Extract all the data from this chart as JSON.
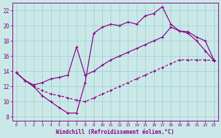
{
  "xlabel": "Windchill (Refroidissement éolien,°C)",
  "bg_color": "#cbe8e8",
  "line_color": "#880088",
  "grid_color": "#99cccc",
  "xlim": [
    -0.5,
    23.5
  ],
  "ylim": [
    7.5,
    23.0
  ],
  "xticks": [
    0,
    1,
    2,
    3,
    4,
    5,
    6,
    7,
    8,
    9,
    10,
    11,
    12,
    13,
    14,
    15,
    16,
    17,
    18,
    19,
    20,
    21,
    22,
    23
  ],
  "yticks": [
    8,
    10,
    12,
    14,
    16,
    18,
    20,
    22
  ],
  "line1_x": [
    0,
    1,
    2,
    3,
    4,
    5,
    6,
    7,
    8,
    9,
    10,
    11,
    12,
    13,
    14,
    15,
    16,
    17,
    18,
    19,
    20,
    21,
    22,
    23
  ],
  "line1_y": [
    13.8,
    12.8,
    12.0,
    10.8,
    10.0,
    9.2,
    8.5,
    8.5,
    12.5,
    19.0,
    19.8,
    20.2,
    20.0,
    20.5,
    20.2,
    21.3,
    21.6,
    22.5,
    20.2,
    19.3,
    19.0,
    18.0,
    16.7,
    15.4
  ],
  "line2_x": [
    0,
    1,
    2,
    3,
    4,
    5,
    6,
    7,
    8,
    9,
    10,
    11,
    12,
    13,
    14,
    15,
    16,
    17,
    18,
    19,
    20,
    21,
    22,
    23
  ],
  "line2_y": [
    13.8,
    12.8,
    12.2,
    12.5,
    13.0,
    13.2,
    13.5,
    17.2,
    13.5,
    14.0,
    14.8,
    15.5,
    16.0,
    16.5,
    17.0,
    17.5,
    18.0,
    18.5,
    19.8,
    19.3,
    19.2,
    18.5,
    18.0,
    15.5
  ],
  "line3_x": [
    0,
    1,
    2,
    3,
    4,
    5,
    6,
    7,
    8,
    9,
    10,
    11,
    12,
    13,
    14,
    15,
    16,
    17,
    18,
    19,
    20,
    21,
    22,
    23
  ],
  "line3_y": [
    13.8,
    12.8,
    12.0,
    11.5,
    11.0,
    10.8,
    10.5,
    10.2,
    10.0,
    10.5,
    11.0,
    11.5,
    12.0,
    12.5,
    13.0,
    13.5,
    14.0,
    14.5,
    15.0,
    15.5,
    15.5,
    15.5,
    15.5,
    15.4
  ]
}
